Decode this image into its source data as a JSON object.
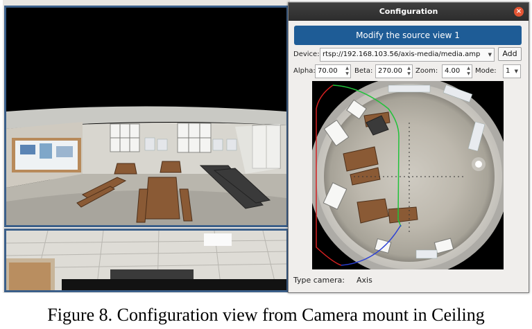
{
  "dialog": {
    "title": "Configuration",
    "close_glyph": "×",
    "modify_button": "Modify the source view 1",
    "device": {
      "label": "Device:",
      "value": "rtsp://192.168.103.56/axis-media/media.amp",
      "add_label": "Add"
    },
    "params": {
      "alpha_label": "Alpha:",
      "alpha_value": "70.00",
      "beta_label": "Beta:",
      "beta_value": "270.00",
      "zoom_label": "Zoom:",
      "zoom_value": "4.00",
      "mode_label": "Mode:",
      "mode_value": "1"
    },
    "type_camera": {
      "label": "Type camera:",
      "value": "Axis"
    }
  },
  "caption": "Figure 8. Configuration view from Camera mount in Ceiling",
  "icons": {
    "close": "close-icon",
    "dropdown": "chevron-down-icon",
    "spinner": "spinner-arrows-icon"
  },
  "colors": {
    "titlebar": "#333333",
    "modify_button": "#1e5c96",
    "close_button": "#e45534",
    "panel_border": "#3b5f8a",
    "fisheye_curve_red": "#d62020",
    "fisheye_curve_green": "#21c23a",
    "fisheye_curve_blue": "#2a3fd6"
  }
}
